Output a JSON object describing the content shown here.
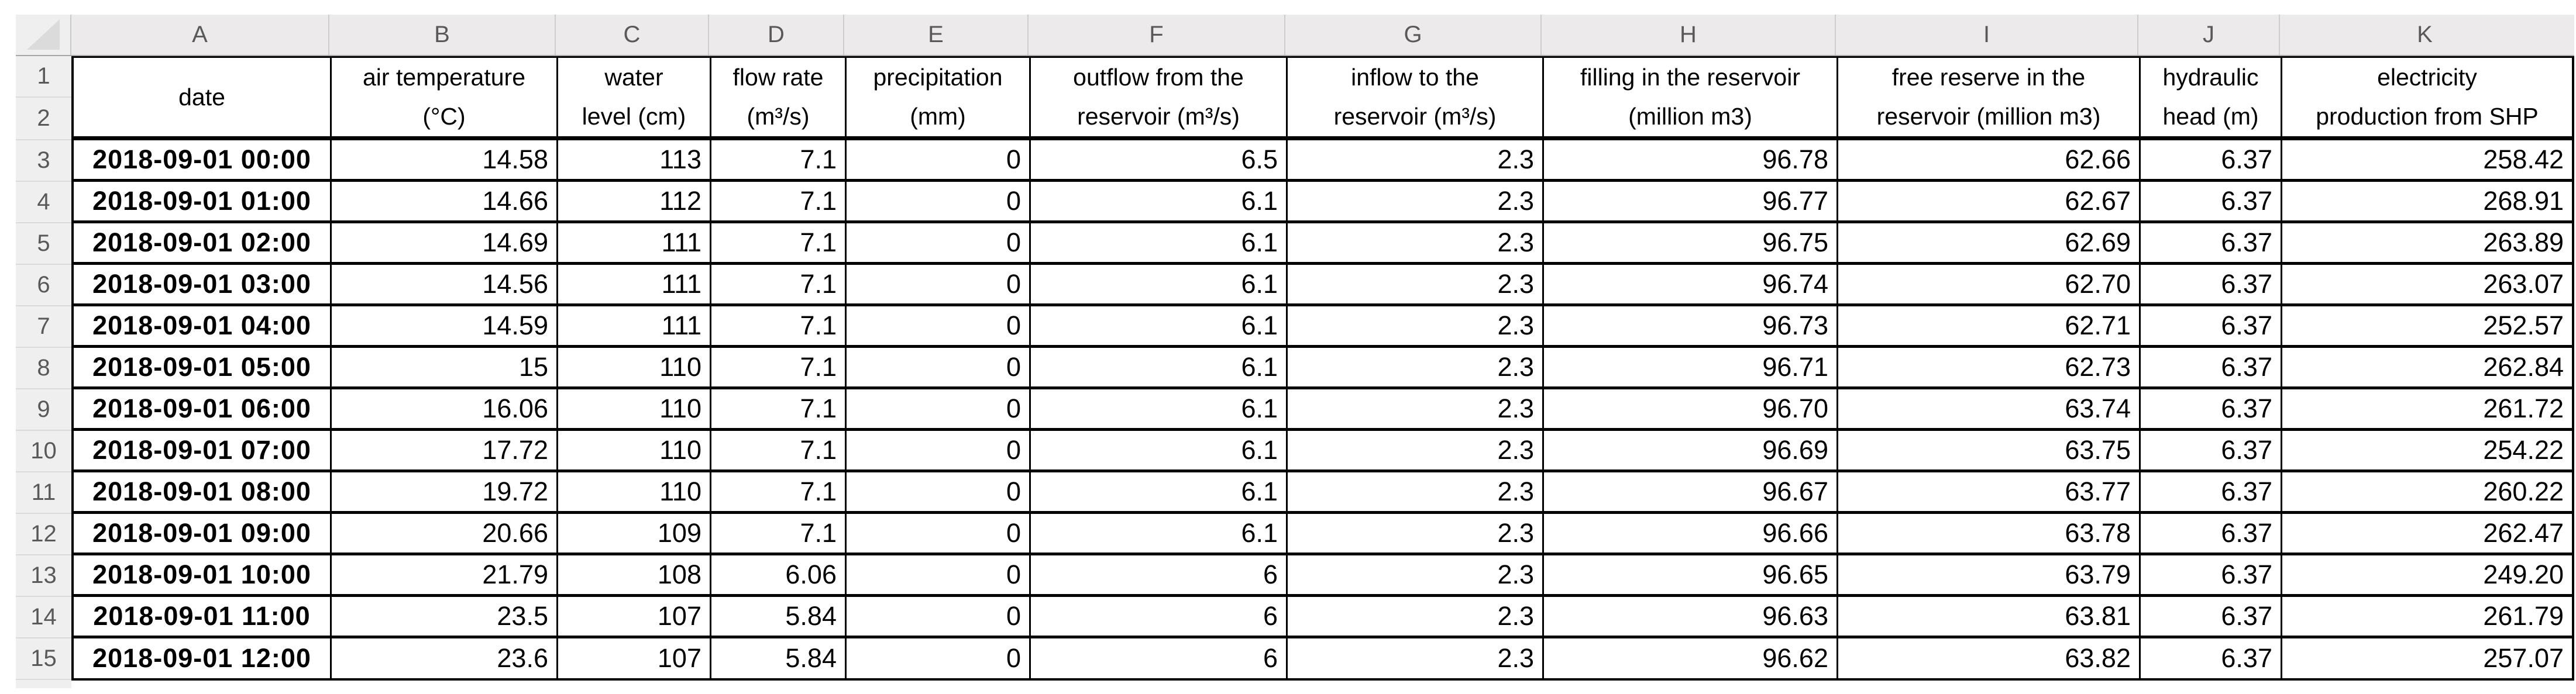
{
  "sheet": {
    "column_letters": [
      "A",
      "B",
      "C",
      "D",
      "E",
      "F",
      "G",
      "H",
      "I",
      "J",
      "K"
    ],
    "row_numbers": [
      "1",
      "2",
      "3",
      "4",
      "5",
      "6",
      "7",
      "8",
      "9",
      "10",
      "11",
      "12",
      "13",
      "14",
      "15"
    ],
    "columns": [
      {
        "letter": "A",
        "header_line1": "date",
        "header_line2": ""
      },
      {
        "letter": "B",
        "header_line1": "air temperature",
        "header_line2": "(°C)"
      },
      {
        "letter": "C",
        "header_line1": "water",
        "header_line2": "level (cm)"
      },
      {
        "letter": "D",
        "header_line1": "flow rate",
        "header_line2": "(m³/s)"
      },
      {
        "letter": "E",
        "header_line1": "precipitation",
        "header_line2": "(mm)"
      },
      {
        "letter": "F",
        "header_line1": "outflow from the",
        "header_line2": "reservoir (m³/s)"
      },
      {
        "letter": "G",
        "header_line1": "inflow to the",
        "header_line2": "reservoir (m³/s)"
      },
      {
        "letter": "H",
        "header_line1": "filling in the reservoir",
        "header_line2": "(million m3)"
      },
      {
        "letter": "I",
        "header_line1": "free reserve in the",
        "header_line2": "reservoir (million m3)"
      },
      {
        "letter": "J",
        "header_line1": "hydraulic",
        "header_line2": "head (m)"
      },
      {
        "letter": "K",
        "header_line1": "electricity",
        "header_line2": "production from SHP"
      }
    ],
    "rows": [
      {
        "num": "3",
        "cells": [
          "2018-09-01 00:00",
          "14.58",
          "113",
          "7.1",
          "0",
          "6.5",
          "2.3",
          "96.78",
          "62.66",
          "6.37",
          "258.42"
        ]
      },
      {
        "num": "4",
        "cells": [
          "2018-09-01 01:00",
          "14.66",
          "112",
          "7.1",
          "0",
          "6.1",
          "2.3",
          "96.77",
          "62.67",
          "6.37",
          "268.91"
        ]
      },
      {
        "num": "5",
        "cells": [
          "2018-09-01 02:00",
          "14.69",
          "111",
          "7.1",
          "0",
          "6.1",
          "2.3",
          "96.75",
          "62.69",
          "6.37",
          "263.89"
        ]
      },
      {
        "num": "6",
        "cells": [
          "2018-09-01 03:00",
          "14.56",
          "111",
          "7.1",
          "0",
          "6.1",
          "2.3",
          "96.74",
          "62.70",
          "6.37",
          "263.07"
        ]
      },
      {
        "num": "7",
        "cells": [
          "2018-09-01 04:00",
          "14.59",
          "111",
          "7.1",
          "0",
          "6.1",
          "2.3",
          "96.73",
          "62.71",
          "6.37",
          "252.57"
        ]
      },
      {
        "num": "8",
        "cells": [
          "2018-09-01 05:00",
          "15",
          "110",
          "7.1",
          "0",
          "6.1",
          "2.3",
          "96.71",
          "62.73",
          "6.37",
          "262.84"
        ]
      },
      {
        "num": "9",
        "cells": [
          "2018-09-01 06:00",
          "16.06",
          "110",
          "7.1",
          "0",
          "6.1",
          "2.3",
          "96.70",
          "63.74",
          "6.37",
          "261.72"
        ]
      },
      {
        "num": "10",
        "cells": [
          "2018-09-01 07:00",
          "17.72",
          "110",
          "7.1",
          "0",
          "6.1",
          "2.3",
          "96.69",
          "63.75",
          "6.37",
          "254.22"
        ]
      },
      {
        "num": "11",
        "cells": [
          "2018-09-01 08:00",
          "19.72",
          "110",
          "7.1",
          "0",
          "6.1",
          "2.3",
          "96.67",
          "63.77",
          "6.37",
          "260.22"
        ]
      },
      {
        "num": "12",
        "cells": [
          "2018-09-01 09:00",
          "20.66",
          "109",
          "7.1",
          "0",
          "6.1",
          "2.3",
          "96.66",
          "63.78",
          "6.37",
          "262.47"
        ]
      },
      {
        "num": "13",
        "cells": [
          "2018-09-01 10:00",
          "21.79",
          "108",
          "6.06",
          "0",
          "6",
          "2.3",
          "96.65",
          "63.79",
          "6.37",
          "249.20"
        ]
      },
      {
        "num": "14",
        "cells": [
          "2018-09-01 11:00",
          "23.5",
          "107",
          "5.84",
          "0",
          "6",
          "2.3",
          "96.63",
          "63.81",
          "6.37",
          "261.79"
        ]
      },
      {
        "num": "15",
        "cells": [
          "2018-09-01 12:00",
          "23.6",
          "107",
          "5.84",
          "0",
          "6",
          "2.3",
          "96.62",
          "63.82",
          "6.37",
          "257.07"
        ]
      }
    ],
    "colors": {
      "chrome_bg": "#f0efef",
      "chrome_text": "#595959",
      "cell_text": "#000000",
      "grid_border": "#000000"
    }
  }
}
